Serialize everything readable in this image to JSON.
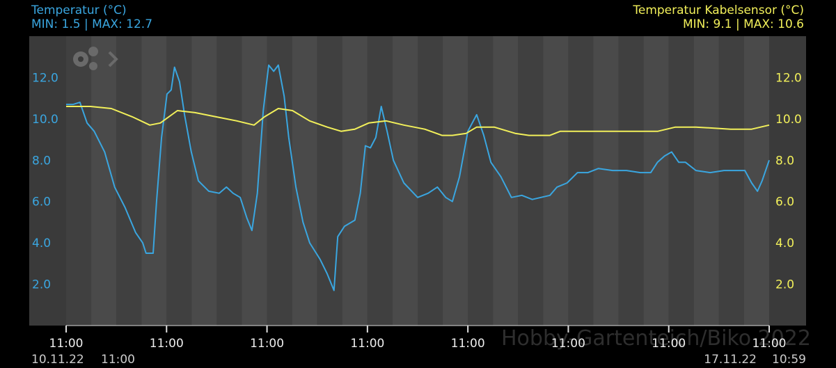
{
  "chart_data": {
    "type": "line",
    "xlim": [
      0,
      168
    ],
    "xticks": [
      {
        "value": 0,
        "label": "11:00"
      },
      {
        "value": 24,
        "label": "11:00"
      },
      {
        "value": 48,
        "label": "11:00"
      },
      {
        "value": 72,
        "label": "11:00"
      },
      {
        "value": 96,
        "label": "11:00"
      },
      {
        "value": 120,
        "label": "11:00"
      },
      {
        "value": 144,
        "label": "11:00"
      },
      {
        "value": 168,
        "label": "11:00"
      }
    ],
    "start_date": "10.11.22",
    "start_time": "11:00",
    "end_date": "17.11.22",
    "end_time": "10:59",
    "watermark": "Hobby-Gartenteich/Biko 2022",
    "ylim": [
      0,
      14
    ],
    "yticks": [
      {
        "value": 2,
        "label": "2.0"
      },
      {
        "value": 4,
        "label": "4.0"
      },
      {
        "value": 6,
        "label": "6.0"
      },
      {
        "value": 8,
        "label": "8.0"
      },
      {
        "value": 10,
        "label": "10.0"
      },
      {
        "value": 12,
        "label": "12.0"
      }
    ],
    "y2lim": [
      0,
      14
    ],
    "y2ticks": [
      {
        "value": 2,
        "label": "2.0"
      },
      {
        "value": 4,
        "label": "4.0"
      },
      {
        "value": 6,
        "label": "6.0"
      },
      {
        "value": 8,
        "label": "8.0"
      },
      {
        "value": 10,
        "label": "10.0"
      },
      {
        "value": 12,
        "label": "12.0"
      }
    ],
    "series": [
      {
        "name": "Temperatur (°C)",
        "stats": "MIN: 1.5 | MAX: 12.7",
        "color": "#3aa6e0",
        "x": [
          0,
          1.7,
          3.3,
          5,
          6.7,
          9.2,
          11.6,
          14.1,
          16.6,
          18.3,
          19.1,
          20.8,
          21.6,
          22.8,
          24.1,
          25.1,
          25.9,
          27.1,
          28.3,
          29.9,
          31.6,
          34.1,
          36.6,
          38.3,
          39.9,
          41.6,
          43.2,
          44.4,
          45.7,
          47.1,
          48.4,
          49.6,
          50.7,
          52.1,
          53.2,
          54.9,
          56.6,
          58.2,
          60.7,
          62.4,
          64.0,
          64.9,
          66.5,
          69.0,
          70.3,
          71.5,
          72.7,
          74.0,
          75.3,
          76.7,
          78.2,
          80.7,
          84.0,
          86.5,
          88.7,
          90.7,
          92.3,
          94.0,
          96.0,
          98.1,
          99.8,
          101.5,
          103.9,
          106.4,
          108.9,
          111.4,
          115.6,
          117.3,
          119.7,
          122.2,
          124.7,
          127.2,
          130.6,
          133.9,
          137.2,
          139.7,
          141.3,
          143.0,
          144.7,
          146.4,
          148.0,
          150.5,
          153.9,
          157.2,
          162.2,
          163.8,
          165.2,
          166.3,
          168
        ],
        "values": [
          10.7,
          10.7,
          10.8,
          9.8,
          9.4,
          8.4,
          6.7,
          5.7,
          4.5,
          4.0,
          3.5,
          3.5,
          6.0,
          9.1,
          11.2,
          11.4,
          12.5,
          11.8,
          10.2,
          8.4,
          7.0,
          6.5,
          6.4,
          6.7,
          6.4,
          6.2,
          5.2,
          4.6,
          6.4,
          10.4,
          12.6,
          12.3,
          12.6,
          11.1,
          9.1,
          6.7,
          5.0,
          4.0,
          3.2,
          2.5,
          1.7,
          4.3,
          4.8,
          5.1,
          6.4,
          8.7,
          8.6,
          9.1,
          10.6,
          9.4,
          8.0,
          6.9,
          6.2,
          6.4,
          6.7,
          6.2,
          6.0,
          7.2,
          9.4,
          10.2,
          9.2,
          7.9,
          7.2,
          6.2,
          6.3,
          6.1,
          6.3,
          6.7,
          6.9,
          7.4,
          7.4,
          7.6,
          7.5,
          7.5,
          7.4,
          7.4,
          7.9,
          8.2,
          8.4,
          7.9,
          7.9,
          7.5,
          7.4,
          7.5,
          7.5,
          6.9,
          6.5,
          7.0,
          8.0
        ]
      },
      {
        "name": "Temperatur Kabelsensor (°C)",
        "stats": "MIN: 9.1 | MAX: 10.6",
        "color": "#f2f05a",
        "axis": "y2",
        "x": [
          0,
          5.8,
          10.8,
          15.8,
          20,
          22.5,
          26.6,
          30.8,
          35.8,
          40.8,
          44.9,
          47.4,
          50.7,
          54.1,
          58.2,
          62.4,
          65.7,
          69.0,
          72.3,
          76.5,
          80.7,
          85.7,
          89.8,
          92.3,
          95.6,
          98.1,
          102.3,
          107.3,
          110.6,
          115.6,
          118.1,
          125.6,
          133.9,
          141.4,
          145.6,
          150.5,
          158.8,
          163.8,
          168
        ],
        "values": [
          10.6,
          10.6,
          10.5,
          10.1,
          9.7,
          9.8,
          10.4,
          10.3,
          10.1,
          9.9,
          9.7,
          10.1,
          10.5,
          10.4,
          9.9,
          9.6,
          9.4,
          9.5,
          9.8,
          9.9,
          9.7,
          9.5,
          9.2,
          9.2,
          9.3,
          9.6,
          9.6,
          9.3,
          9.2,
          9.2,
          9.4,
          9.4,
          9.4,
          9.4,
          9.6,
          9.6,
          9.5,
          9.5,
          9.7
        ]
      }
    ]
  }
}
